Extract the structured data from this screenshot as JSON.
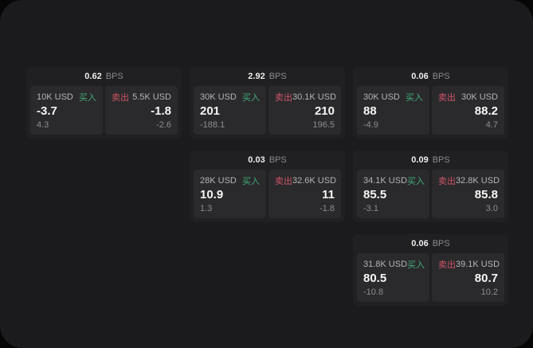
{
  "labels": {
    "bps": "BPS",
    "buy": "买入",
    "sell": "卖出"
  },
  "colors": {
    "buy_green": "#43ab78",
    "sell_red": "#cf5466",
    "surface": "#1b1b1d",
    "card_background": "#202022",
    "panel_background": "#2a2a2c"
  },
  "cards": [
    {
      "bps": "0.62",
      "buy": {
        "amount": "10K USD",
        "price": "-3.7",
        "change": "4.3"
      },
      "sell": {
        "amount": "5.5K USD",
        "price": "-1.8",
        "change": "-2.6"
      }
    },
    {
      "bps": "2.92",
      "buy": {
        "amount": "30K USD",
        "price": "201",
        "change": "-188.1"
      },
      "sell": {
        "amount": "30.1K USD",
        "price": "210",
        "change": "196.5"
      }
    },
    {
      "bps": "0.06",
      "buy": {
        "amount": "30K USD",
        "price": "88",
        "change": "-4.9"
      },
      "sell": {
        "amount": "30K USD",
        "price": "88.2",
        "change": "4.7"
      }
    },
    {
      "bps": "0.03",
      "buy": {
        "amount": "28K USD",
        "price": "10.9",
        "change": "1.3"
      },
      "sell": {
        "amount": "32.6K USD",
        "price": "11",
        "change": "-1.8"
      }
    },
    {
      "bps": "0.09",
      "buy": {
        "amount": "34.1K USD",
        "price": "85.5",
        "change": "-3.1"
      },
      "sell": {
        "amount": "32.8K USD",
        "price": "85.8",
        "change": "3.0"
      }
    },
    {
      "bps": "0.06",
      "buy": {
        "amount": "31.8K USD",
        "price": "80.5",
        "change": "-10.8"
      },
      "sell": {
        "amount": "39.1K USD",
        "price": "80.7",
        "change": "10.2"
      }
    }
  ]
}
